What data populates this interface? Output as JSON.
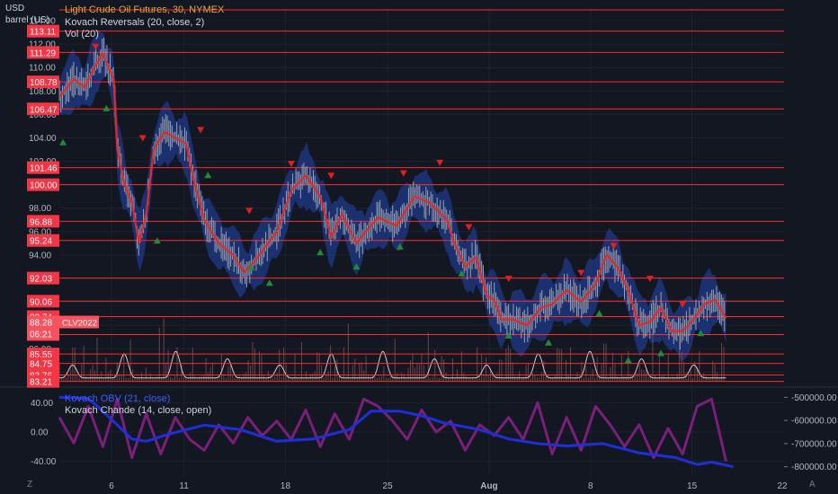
{
  "header": {
    "title": "Light Crude Oil Futures, 30, NYMEX",
    "indicator1": "Kovach Reversals (20, close, 2)",
    "indicator2": "Vol (20)",
    "currency": "USD",
    "unit": "barrel (US)"
  },
  "subpanel": {
    "legend1": "Kovach OBV (21, close)",
    "legend2": "Kovach Chande (14, close, open)"
  },
  "footer": {
    "left_button": "Z",
    "right_button": "A"
  },
  "colors": {
    "background": "#131722",
    "candle": "#9aa0ab",
    "price_line": "#e02a2a",
    "band": "#1f3a8a",
    "level_line": "#ff2a2a",
    "down_marker": "#e0201f",
    "up_marker": "#1e8c3a",
    "obv": "#1f2fd8",
    "chande": "#7a1f7a",
    "volume_curve": "#d8c7c7"
  },
  "chart_data": [
    {
      "type": "line",
      "title": "Light Crude Oil Futures, 30, NYMEX",
      "ylabel": "USD barrel (US)",
      "ylim": [
        82.8,
        115.0
      ],
      "y_ticks": [
        114.0,
        112.0,
        110.0,
        108.0,
        106.0,
        104.0,
        102.0,
        100.0,
        98.0,
        96.0,
        94.0,
        92.0,
        90.0,
        88.0,
        86.0,
        84.0
      ],
      "x_ticks": [
        "6",
        "11",
        "18",
        "25",
        "Aug",
        "8",
        "15",
        "22"
      ],
      "x_tick_pos": [
        0.072,
        0.172,
        0.312,
        0.453,
        0.593,
        0.733,
        0.873,
        1.013
      ],
      "price_path": [
        [
          0.0,
          107.5
        ],
        [
          0.02,
          109.0
        ],
        [
          0.035,
          108.3
        ],
        [
          0.05,
          110.2
        ],
        [
          0.06,
          111.2
        ],
        [
          0.075,
          109.0
        ],
        [
          0.08,
          103.0
        ],
        [
          0.09,
          100.0
        ],
        [
          0.1,
          98.5
        ],
        [
          0.11,
          95.0
        ],
        [
          0.12,
          97.5
        ],
        [
          0.13,
          103.0
        ],
        [
          0.145,
          104.5
        ],
        [
          0.16,
          104.0
        ],
        [
          0.175,
          103.5
        ],
        [
          0.185,
          100.5
        ],
        [
          0.2,
          97.0
        ],
        [
          0.22,
          95.0
        ],
        [
          0.24,
          94.0
        ],
        [
          0.255,
          92.5
        ],
        [
          0.27,
          93.5
        ],
        [
          0.3,
          96.0
        ],
        [
          0.32,
          99.5
        ],
        [
          0.34,
          100.8
        ],
        [
          0.36,
          99.0
        ],
        [
          0.375,
          95.5
        ],
        [
          0.39,
          97.5
        ],
        [
          0.41,
          95.0
        ],
        [
          0.42,
          95.8
        ],
        [
          0.44,
          97.2
        ],
        [
          0.465,
          96.5
        ],
        [
          0.49,
          99.0
        ],
        [
          0.51,
          98.5
        ],
        [
          0.535,
          97.0
        ],
        [
          0.545,
          95.0
        ],
        [
          0.56,
          93.0
        ],
        [
          0.575,
          93.8
        ],
        [
          0.59,
          90.5
        ],
        [
          0.6,
          90.2
        ],
        [
          0.61,
          88.5
        ],
        [
          0.625,
          88.5
        ],
        [
          0.645,
          88.0
        ],
        [
          0.665,
          89.5
        ],
        [
          0.68,
          89.8
        ],
        [
          0.7,
          91.0
        ],
        [
          0.72,
          90.0
        ],
        [
          0.74,
          91.5
        ],
        [
          0.755,
          94.0
        ],
        [
          0.77,
          93.0
        ],
        [
          0.785,
          91.0
        ],
        [
          0.8,
          88.0
        ],
        [
          0.815,
          88.3
        ],
        [
          0.83,
          89.5
        ],
        [
          0.845,
          87.5
        ],
        [
          0.86,
          87.5
        ],
        [
          0.875,
          88.5
        ],
        [
          0.89,
          89.8
        ],
        [
          0.905,
          90.2
        ],
        [
          0.92,
          88.6
        ]
      ],
      "price_labels": [
        "113.11",
        "111.29",
        "108.78",
        "106.47",
        "101.46",
        "100.00",
        "96.88",
        "95.24",
        "92.03",
        "90.06",
        "88.74",
        "88.28",
        "87.21",
        "85.55",
        "84.75",
        "83.76",
        "83.21"
      ],
      "price_levels": [
        113.11,
        111.29,
        108.78,
        106.47,
        101.46,
        100.0,
        96.88,
        95.24,
        92.03,
        90.06,
        88.74,
        87.21,
        85.55,
        84.75,
        83.76,
        83.21
      ],
      "current_price_label": {
        "price": "88.28",
        "symbol": "CLV2022",
        "countdown": "06:21"
      },
      "reversal_markers_down": [
        [
          0.05,
          111.8
        ],
        [
          0.115,
          104.0
        ],
        [
          0.195,
          104.7
        ],
        [
          0.262,
          97.8
        ],
        [
          0.32,
          101.8
        ],
        [
          0.375,
          100.8
        ],
        [
          0.475,
          101.0
        ],
        [
          0.525,
          101.9
        ],
        [
          0.565,
          96.4
        ],
        [
          0.62,
          92.0
        ],
        [
          0.72,
          92.5
        ],
        [
          0.765,
          94.8
        ],
        [
          0.815,
          92.0
        ],
        [
          0.86,
          89.8
        ]
      ],
      "reversal_markers_up": [
        [
          0.005,
          103.6
        ],
        [
          0.065,
          106.5
        ],
        [
          0.135,
          95.2
        ],
        [
          0.205,
          100.8
        ],
        [
          0.265,
          92.9
        ],
        [
          0.29,
          91.6
        ],
        [
          0.36,
          94.2
        ],
        [
          0.41,
          93.0
        ],
        [
          0.47,
          94.7
        ],
        [
          0.555,
          92.4
        ],
        [
          0.62,
          87.1
        ],
        [
          0.675,
          86.5
        ],
        [
          0.745,
          89.0
        ],
        [
          0.785,
          85.0
        ],
        [
          0.83,
          85.6
        ],
        [
          0.885,
          87.3
        ]
      ],
      "volume": {
        "name": "Vol (20)",
        "cycles": 28,
        "curve_range": [
          83.21,
          85.5
        ]
      }
    },
    {
      "type": "line",
      "title": "Kovach OBV (21, close) / Kovach Chande (14, close, open)",
      "left_ylim": [
        -60,
        60
      ],
      "left_ticks": [
        "40.00",
        "0.00",
        "-40.00"
      ],
      "left_tick_values": [
        40,
        0,
        -40
      ],
      "right_ylim": [
        -840000,
        -460000
      ],
      "right_ticks": [
        "-500000.00",
        "-600000.00",
        "-700000.00",
        "-800000.00"
      ],
      "right_tick_values": [
        -500000,
        -600000,
        -700000,
        -800000
      ],
      "series": [
        {
          "name": "Kovach OBV (21, close)",
          "axis": "right",
          "x": [
            0.0,
            0.04,
            0.06,
            0.1,
            0.12,
            0.15,
            0.2,
            0.25,
            0.3,
            0.35,
            0.4,
            0.43,
            0.47,
            0.5,
            0.53,
            0.58,
            0.62,
            0.66,
            0.7,
            0.75,
            0.8,
            0.85,
            0.88,
            0.9,
            0.93
          ],
          "values": [
            -500000,
            -505000,
            -560000,
            -680000,
            -690000,
            -660000,
            -620000,
            -640000,
            -690000,
            -680000,
            -640000,
            -560000,
            -560000,
            -580000,
            -610000,
            -640000,
            -680000,
            -700000,
            -710000,
            -700000,
            -740000,
            -760000,
            -790000,
            -780000,
            -800000
          ]
        },
        {
          "name": "Kovach Chande (14, close, open)",
          "axis": "left",
          "x": [
            0.0,
            0.02,
            0.04,
            0.06,
            0.08,
            0.1,
            0.12,
            0.14,
            0.16,
            0.18,
            0.2,
            0.22,
            0.24,
            0.26,
            0.28,
            0.3,
            0.32,
            0.34,
            0.36,
            0.38,
            0.4,
            0.42,
            0.44,
            0.46,
            0.48,
            0.5,
            0.52,
            0.54,
            0.56,
            0.58,
            0.6,
            0.62,
            0.64,
            0.66,
            0.68,
            0.7,
            0.72,
            0.74,
            0.76,
            0.78,
            0.8,
            0.82,
            0.84,
            0.86,
            0.88,
            0.9,
            0.92
          ],
          "values": [
            20,
            -15,
            35,
            -20,
            45,
            -35,
            25,
            -30,
            20,
            -10,
            -25,
            10,
            -15,
            20,
            -5,
            15,
            -10,
            30,
            -20,
            25,
            -10,
            45,
            35,
            15,
            -10,
            30,
            0,
            15,
            -25,
            10,
            -5,
            20,
            -10,
            40,
            -30,
            20,
            -25,
            35,
            10,
            -20,
            10,
            -35,
            5,
            -30,
            35,
            45,
            -40
          ]
        }
      ]
    }
  ]
}
